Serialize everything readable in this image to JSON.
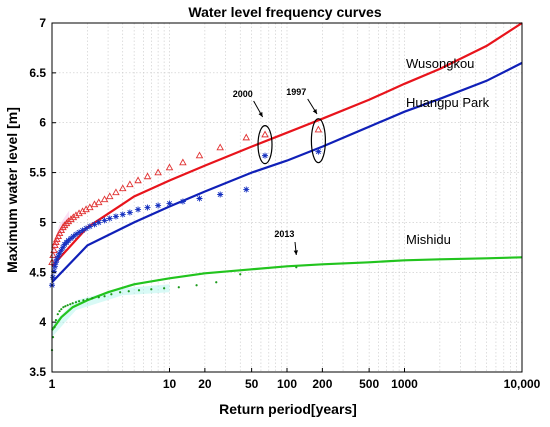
{
  "chart_data": {
    "type": "line",
    "title": "Water level frequency curves",
    "xlabel": "Return period[years]",
    "ylabel": "Maximum water level [m]",
    "x_scale": "log",
    "xlim": [
      1,
      10000
    ],
    "ylim": [
      3.5,
      7
    ],
    "grid": true,
    "x_ticks": [
      1,
      10,
      20,
      50,
      100,
      200,
      500,
      1000,
      10000
    ],
    "x_tick_labels": [
      "1",
      "10",
      "20",
      "50",
      "100",
      "200",
      "500",
      "1000",
      "10,000"
    ],
    "y_ticks": [
      3.5,
      4,
      4.5,
      5,
      5.5,
      6,
      6.5,
      7
    ],
    "y_tick_labels": [
      "3.5",
      "4",
      "4.5",
      "5",
      "5.5",
      "6",
      "6.5",
      "7"
    ],
    "series": [
      {
        "name": "Wusongkou",
        "color": "#e8141c",
        "marker": "triangle",
        "fit": [
          [
            1,
            4.56
          ],
          [
            2,
            4.95
          ],
          [
            5,
            5.26
          ],
          [
            10,
            5.42
          ],
          [
            20,
            5.57
          ],
          [
            50,
            5.76
          ],
          [
            100,
            5.9
          ],
          [
            200,
            6.04
          ],
          [
            500,
            6.23
          ],
          [
            1000,
            6.39
          ],
          [
            2000,
            6.54
          ],
          [
            5000,
            6.77
          ],
          [
            10000,
            7.0
          ]
        ],
        "observed_x": [
          1.0,
          1.02,
          1.04,
          1.06,
          1.08,
          1.1,
          1.13,
          1.16,
          1.2,
          1.24,
          1.28,
          1.33,
          1.38,
          1.45,
          1.52,
          1.6,
          1.7,
          1.82,
          1.95,
          2.1,
          2.3,
          2.5,
          2.8,
          3.1,
          3.5,
          4.0,
          4.6,
          5.4,
          6.5,
          8.0,
          10.0,
          13.0,
          18.0,
          27.0,
          45.0,
          65.0,
          185.0
        ],
        "observed_y": [
          4.6,
          4.67,
          4.72,
          4.77,
          4.8,
          4.83,
          4.86,
          4.89,
          4.92,
          4.95,
          4.97,
          4.99,
          5.01,
          5.03,
          5.05,
          5.07,
          5.09,
          5.11,
          5.13,
          5.15,
          5.18,
          5.2,
          5.23,
          5.26,
          5.3,
          5.34,
          5.38,
          5.42,
          5.46,
          5.5,
          5.55,
          5.6,
          5.67,
          5.75,
          5.85,
          5.88,
          5.93
        ]
      },
      {
        "name": "Huangpu Park",
        "color": "#1020b8",
        "marker": "star",
        "fit": [
          [
            1,
            4.4
          ],
          [
            2,
            4.77
          ],
          [
            5,
            5.0
          ],
          [
            10,
            5.16
          ],
          [
            20,
            5.31
          ],
          [
            50,
            5.5
          ],
          [
            100,
            5.62
          ],
          [
            200,
            5.76
          ],
          [
            500,
            5.96
          ],
          [
            1000,
            6.11
          ],
          [
            2000,
            6.24
          ],
          [
            5000,
            6.42
          ],
          [
            10000,
            6.6
          ]
        ],
        "observed_x": [
          1.0,
          1.02,
          1.04,
          1.06,
          1.08,
          1.1,
          1.13,
          1.16,
          1.2,
          1.24,
          1.28,
          1.33,
          1.38,
          1.45,
          1.52,
          1.6,
          1.7,
          1.82,
          1.95,
          2.1,
          2.3,
          2.5,
          2.8,
          3.1,
          3.5,
          4.0,
          4.6,
          5.4,
          6.5,
          8.0,
          10.0,
          13.0,
          18.0,
          27.0,
          45.0,
          65.0,
          185.0
        ],
        "observed_y": [
          4.37,
          4.45,
          4.51,
          4.56,
          4.6,
          4.63,
          4.66,
          4.69,
          4.72,
          4.75,
          4.78,
          4.8,
          4.82,
          4.84,
          4.86,
          4.88,
          4.9,
          4.92,
          4.94,
          4.96,
          4.98,
          5.0,
          5.02,
          5.04,
          5.06,
          5.08,
          5.1,
          5.13,
          5.15,
          5.17,
          5.19,
          5.21,
          5.24,
          5.28,
          5.33,
          5.67,
          5.71
        ]
      },
      {
        "name": "Mishidu",
        "color": "#22c41e",
        "marker": "dot",
        "fit": [
          [
            1,
            3.92
          ],
          [
            1.2,
            4.05
          ],
          [
            1.5,
            4.15
          ],
          [
            2,
            4.22
          ],
          [
            3,
            4.3
          ],
          [
            5,
            4.38
          ],
          [
            10,
            4.44
          ],
          [
            20,
            4.49
          ],
          [
            50,
            4.53
          ],
          [
            100,
            4.56
          ],
          [
            200,
            4.58
          ],
          [
            500,
            4.6
          ],
          [
            1000,
            4.62
          ],
          [
            2000,
            4.63
          ],
          [
            5000,
            4.64
          ],
          [
            10000,
            4.65
          ]
        ],
        "observed_x": [
          1.0,
          1.02,
          1.05,
          1.08,
          1.12,
          1.16,
          1.2,
          1.25,
          1.3,
          1.36,
          1.43,
          1.5,
          1.6,
          1.7,
          1.85,
          2.0,
          2.2,
          2.5,
          2.8,
          3.2,
          3.8,
          4.5,
          5.5,
          7.0,
          9.0,
          12.0,
          17.0,
          25.0,
          40.0,
          120.0
        ],
        "observed_y": [
          3.72,
          3.85,
          3.95,
          4.02,
          4.08,
          4.11,
          4.13,
          4.15,
          4.16,
          4.17,
          4.18,
          4.19,
          4.2,
          4.21,
          4.22,
          4.23,
          4.24,
          4.25,
          4.26,
          4.28,
          4.3,
          4.31,
          4.32,
          4.33,
          4.34,
          4.35,
          4.37,
          4.4,
          4.48,
          4.55
        ]
      }
    ],
    "annotations": [
      {
        "text": "2000",
        "x": 65,
        "y": 5.78,
        "target": "ellipse"
      },
      {
        "text": "1997",
        "x": 185,
        "y": 5.82,
        "target": "ellipse"
      },
      {
        "text": "2013",
        "x": 120,
        "y": 4.55,
        "target": "point"
      }
    ]
  }
}
